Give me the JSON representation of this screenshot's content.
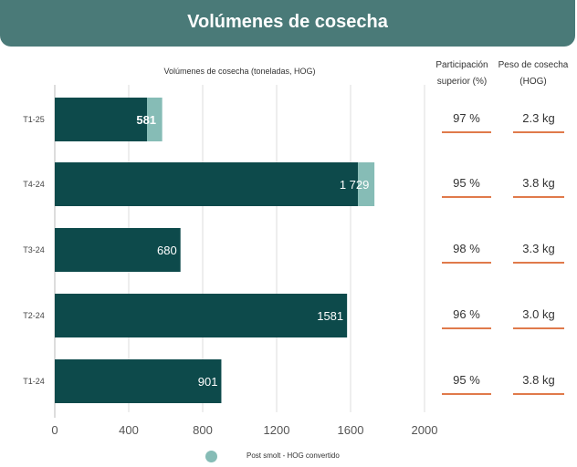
{
  "header": {
    "title": "Volúmenes de cosecha"
  },
  "chart_data": {
    "type": "bar",
    "orientation": "horizontal",
    "stacked": true,
    "title": "Volúmenes de cosecha (toneladas, HOG)",
    "categories": [
      "T1-25",
      "T4-24",
      "T3-24",
      "T2-24",
      "T1-24"
    ],
    "series": [
      {
        "values": [
          499,
          1640,
          680,
          1581,
          901
        ],
        "color": "#0d4a4b"
      },
      {
        "name": "Post smolt - HOG convertido",
        "values": [
          82,
          89,
          0,
          0,
          0
        ],
        "color": "#86bcb6"
      }
    ],
    "data_labels": [
      "581",
      "1 729",
      "680",
      "1581",
      "901"
    ],
    "x_ticks": [
      "0",
      "400",
      "800",
      "1200",
      "1600",
      "2000"
    ],
    "xlim": [
      0,
      2000
    ],
    "grid": true,
    "legend_position": "bottom"
  },
  "table": {
    "headers": [
      "Participación superior (%)",
      "Peso de cosecha (HOG)"
    ],
    "rows": [
      [
        "97 %",
        "2.3 kg"
      ],
      [
        "95 %",
        "3.8 kg"
      ],
      [
        "98 %",
        "3.3 kg"
      ],
      [
        "96 %",
        "3.0 kg"
      ],
      [
        "95 %",
        "3.8 kg"
      ]
    ]
  },
  "legend": {
    "label": "Post smolt - HOG convertido",
    "color": "#86bcb6"
  },
  "colors": {
    "header_bg": "#4a7a78",
    "bar_main": "#0d4a4b",
    "bar_post_smolt": "#86bcb6",
    "accent_line": "#e07a4b"
  }
}
